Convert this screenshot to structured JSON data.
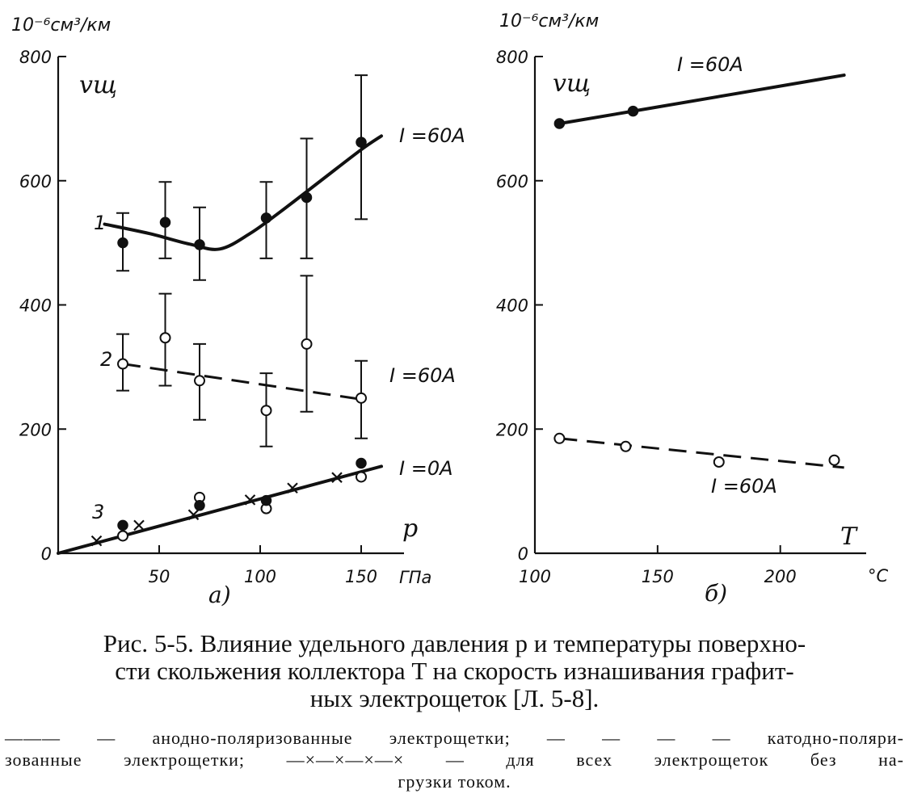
{
  "chart_data": [
    {
      "id": "a",
      "type": "line",
      "panel_label": "а)",
      "y_unit": "10⁻⁶см³/км",
      "y_symbol": "vщ",
      "x_symbol": "p",
      "x_unit": "ГПа",
      "xlim": [
        0,
        160
      ],
      "ylim": [
        0,
        800
      ],
      "y_ticks": [
        "0",
        "200",
        "400",
        "600",
        "800"
      ],
      "x_ticks": [
        "50",
        "100",
        "150"
      ],
      "series": [
        {
          "label": "1",
          "annotation": "I =60A",
          "style": "solid",
          "marker": "filled",
          "line": [
            [
              23,
              530
            ],
            [
              45,
              515
            ],
            [
              65,
              498
            ],
            [
              80,
              490
            ],
            [
              95,
              515
            ],
            [
              110,
              550
            ],
            [
              130,
              600
            ],
            [
              150,
              650
            ],
            [
              160,
              672
            ]
          ],
          "points": [
            {
              "x": 32,
              "y": 500,
              "lo": 455,
              "hi": 548
            },
            {
              "x": 53,
              "y": 533,
              "lo": 475,
              "hi": 598
            },
            {
              "x": 70,
              "y": 497,
              "lo": 440,
              "hi": 557
            },
            {
              "x": 103,
              "y": 540,
              "lo": 475,
              "hi": 598
            },
            {
              "x": 123,
              "y": 573,
              "lo": 475,
              "hi": 668
            },
            {
              "x": 150,
              "y": 662,
              "lo": 538,
              "hi": 770
            }
          ]
        },
        {
          "label": "2",
          "annotation": "I =60A",
          "style": "dashed",
          "marker": "open",
          "line": [
            [
              32,
              305
            ],
            [
              150,
              248
            ]
          ],
          "points": [
            {
              "x": 32,
              "y": 305,
              "lo": 262,
              "hi": 353
            },
            {
              "x": 53,
              "y": 347,
              "lo": 270,
              "hi": 418
            },
            {
              "x": 70,
              "y": 278,
              "lo": 215,
              "hi": 337
            },
            {
              "x": 103,
              "y": 230,
              "lo": 172,
              "hi": 290
            },
            {
              "x": 123,
              "y": 337,
              "lo": 228,
              "hi": 447
            },
            {
              "x": 150,
              "y": 250,
              "lo": 185,
              "hi": 310
            }
          ]
        },
        {
          "label": "3",
          "annotation": "I =0A",
          "style": "solid",
          "marker": "mixed",
          "line": [
            [
              0,
              0
            ],
            [
              160,
              140
            ]
          ],
          "cross_points": [
            [
              19,
              20
            ],
            [
              40,
              45
            ],
            [
              67,
              62
            ],
            [
              95,
              86
            ],
            [
              116,
              105
            ],
            [
              138,
              122
            ]
          ],
          "open_points": [
            [
              32,
              28
            ],
            [
              70,
              90
            ],
            [
              103,
              72
            ],
            [
              150,
              123
            ]
          ],
          "filled_points": [
            [
              32,
              45
            ],
            [
              70,
              77
            ],
            [
              103,
              85
            ],
            [
              150,
              145
            ]
          ]
        }
      ]
    },
    {
      "id": "b",
      "type": "line",
      "panel_label": "б)",
      "y_unit": "10⁻⁶см³/км",
      "y_symbol": "vщ",
      "x_symbol": "T",
      "x_unit": "°C",
      "xlim": [
        100,
        235
      ],
      "ylim": [
        0,
        800
      ],
      "y_ticks": [
        "0",
        "200",
        "400",
        "600",
        "800"
      ],
      "x_ticks": [
        "100",
        "150",
        "200"
      ],
      "series": [
        {
          "annotation": "I =60A",
          "style": "solid",
          "marker": "filled",
          "line": [
            [
              110,
              692
            ],
            [
              140,
              712
            ],
            [
              226,
              770
            ]
          ],
          "points": [
            {
              "x": 110,
              "y": 692
            },
            {
              "x": 140,
              "y": 712
            }
          ]
        },
        {
          "annotation": "I =60A",
          "style": "dashed",
          "marker": "open",
          "line": [
            [
              110,
              185
            ],
            [
              226,
              138
            ]
          ],
          "points": [
            {
              "x": 110,
              "y": 185
            },
            {
              "x": 137,
              "y": 172
            },
            {
              "x": 175,
              "y": 147
            },
            {
              "x": 222,
              "y": 150
            }
          ]
        }
      ]
    }
  ],
  "caption": {
    "lines": [
      "Рис. 5-5. Влияние удельного давления p и температуры поверхно-",
      "сти скольжения коллектора T на скорость изнашивания графит-",
      "ных электрощеток [Л. 5-8]."
    ]
  },
  "legend": {
    "lines": [
      "——— — анодно-поляризованные электрощетки; — — — — катодно-поляри-",
      "зованные электрощетки; —×—×—×—× — для всех электрощеток без на-",
      "грузки током."
    ]
  }
}
